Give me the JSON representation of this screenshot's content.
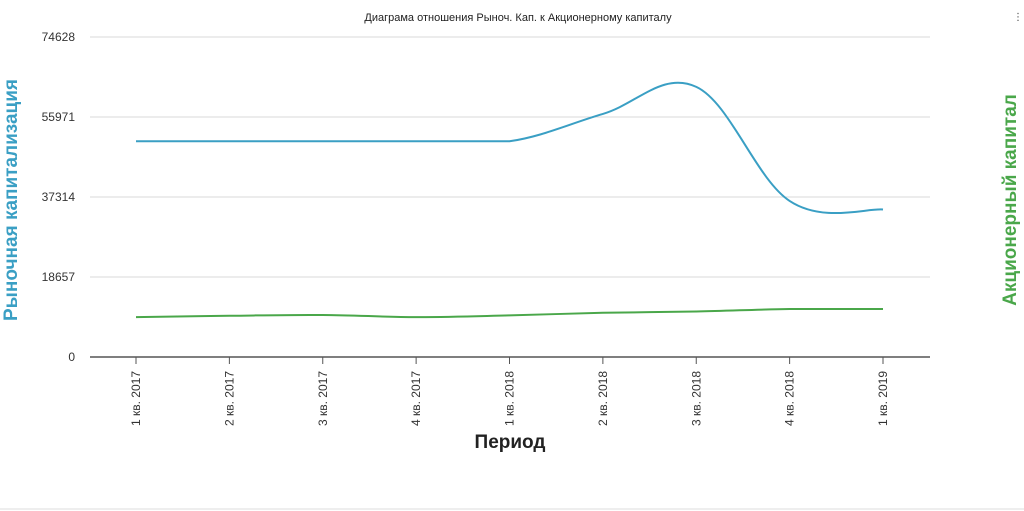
{
  "chart_data": {
    "type": "line",
    "title": "Диаграма отношения Рыноч. Кап. к Акционерному капиталу",
    "xlabel": "Период",
    "ylabel": "Рыночная капитализация",
    "y2label": "Акционерный капитал",
    "categories": [
      "1 кв. 2017",
      "2 кв. 2017",
      "3 кв. 2017",
      "4 кв. 2017",
      "1 кв. 2018",
      "2 кв. 2018",
      "3 кв. 2018",
      "4 кв. 2018",
      "1 кв. 2019"
    ],
    "yticks": [
      "0",
      "18657",
      "37314",
      "55971",
      "74628"
    ],
    "ylim": [
      0,
      74628
    ],
    "grid": true,
    "colors": {
      "left_axis": "#3a9fc4",
      "right_axis": "#4aa74a"
    },
    "series": [
      {
        "color": "#3a9fc4",
        "axis": "left",
        "values": [
          50300,
          50300,
          50300,
          50300,
          50300,
          56700,
          63000,
          36400,
          34400
        ]
      },
      {
        "color": "#4aa74a",
        "axis": "right",
        "values": [
          9300,
          9600,
          9800,
          9300,
          9700,
          10300,
          10600,
          11200,
          11200
        ]
      }
    ]
  },
  "corner_mark": "⋮"
}
